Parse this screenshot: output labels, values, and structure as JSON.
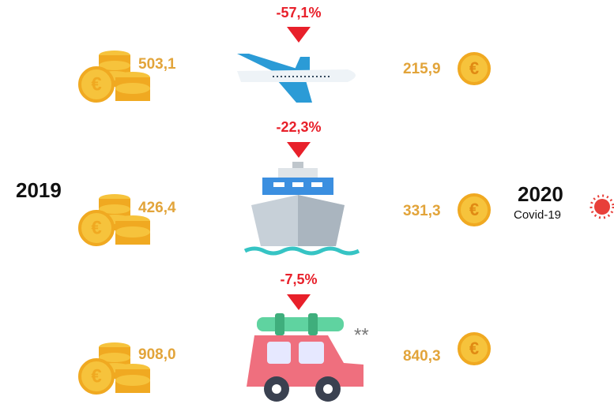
{
  "left_label": "2019",
  "right_label": "2020",
  "right_sublabel": "Covid-19",
  "rows": [
    {
      "before": "503,1",
      "after": "215,9",
      "change": "-57,1%"
    },
    {
      "before": "426,4",
      "after": "331,3",
      "change": "-22,3%"
    },
    {
      "before": "908,0",
      "after": "840,3",
      "change": "-7,5%",
      "note": "**"
    }
  ]
}
